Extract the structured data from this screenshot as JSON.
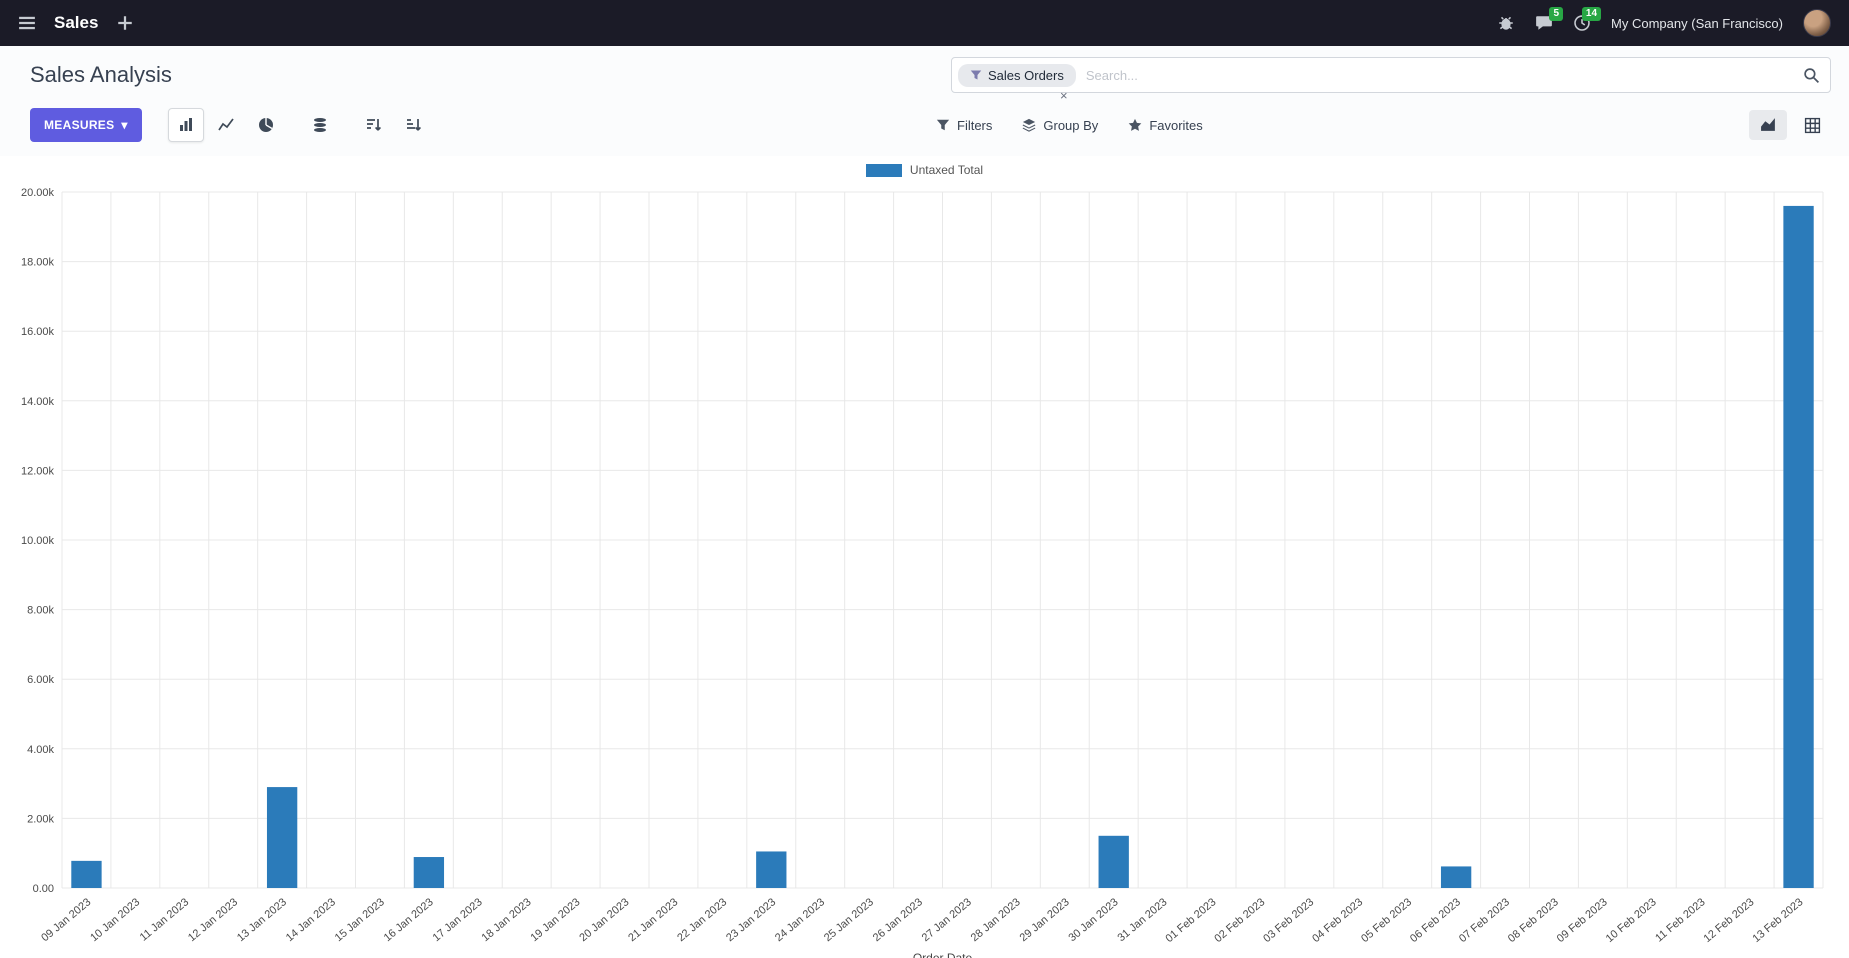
{
  "navbar": {
    "app_name": "Sales",
    "company": "My Company (San Francisco)",
    "message_count": "5",
    "activity_count": "14"
  },
  "control_panel": {
    "title": "Sales Analysis",
    "measures_label": "MEASURES",
    "search": {
      "facet_label": "Sales Orders",
      "placeholder": "Search...",
      "remove_symbol": "×"
    },
    "filters_label": "Filters",
    "group_by_label": "Group By",
    "favorites_label": "Favorites"
  },
  "icons": {
    "caret_down": "▾"
  },
  "colors": {
    "bar": "#2b7bba",
    "accent": "#5f5ce0",
    "badge_green": "#28a745",
    "navbar_bg": "#1b1b27"
  },
  "chart_data": {
    "type": "bar",
    "title": "",
    "legend": [
      "Untaxed Total"
    ],
    "legend_position": "top-center",
    "grid": true,
    "xlabel": "Order Date",
    "ylabel": "",
    "ylim": [
      0,
      20000
    ],
    "ytick_step": 2000,
    "ytick_labels": [
      "0.00",
      "2.00k",
      "4.00k",
      "6.00k",
      "8.00k",
      "10.00k",
      "12.00k",
      "14.00k",
      "16.00k",
      "18.00k",
      "20.00k"
    ],
    "categories": [
      "09 Jan 2023",
      "10 Jan 2023",
      "11 Jan 2023",
      "12 Jan 2023",
      "13 Jan 2023",
      "14 Jan 2023",
      "15 Jan 2023",
      "16 Jan 2023",
      "17 Jan 2023",
      "18 Jan 2023",
      "19 Jan 2023",
      "20 Jan 2023",
      "21 Jan 2023",
      "22 Jan 2023",
      "23 Jan 2023",
      "24 Jan 2023",
      "25 Jan 2023",
      "26 Jan 2023",
      "27 Jan 2023",
      "28 Jan 2023",
      "29 Jan 2023",
      "30 Jan 2023",
      "31 Jan 2023",
      "01 Feb 2023",
      "02 Feb 2023",
      "03 Feb 2023",
      "04 Feb 2023",
      "05 Feb 2023",
      "06 Feb 2023",
      "07 Feb 2023",
      "08 Feb 2023",
      "09 Feb 2023",
      "10 Feb 2023",
      "11 Feb 2023",
      "12 Feb 2023",
      "13 Feb 2023"
    ],
    "series": [
      {
        "name": "Untaxed Total",
        "values": [
          780,
          0,
          0,
          0,
          2900,
          0,
          0,
          890,
          0,
          0,
          0,
          0,
          0,
          0,
          1050,
          0,
          0,
          0,
          0,
          0,
          0,
          1500,
          0,
          0,
          0,
          0,
          0,
          0,
          620,
          0,
          0,
          0,
          0,
          0,
          0,
          19600
        ]
      }
    ]
  }
}
